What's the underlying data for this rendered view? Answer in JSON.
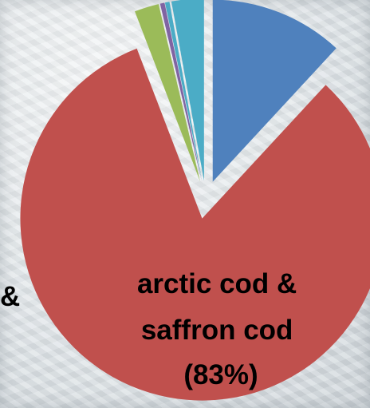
{
  "chart_data": {
    "type": "pie",
    "exploded": true,
    "slices": [
      {
        "label": "",
        "value": 12.0,
        "color": "#4f81bd"
      },
      {
        "label": "arctic cod & saffron cod (83%)",
        "value": 83.0,
        "color": "#c0504d"
      },
      {
        "label": "",
        "value": 2.2,
        "color": "#9bbb59"
      },
      {
        "label": "",
        "value": 0.4,
        "color": "#8064a2"
      },
      {
        "label": "",
        "value": 0.4,
        "color": "#4bacc6"
      },
      {
        "label": "",
        "value": 2.9,
        "color": "#4bacc6"
      }
    ],
    "label_lines": [
      "arctic cod &",
      "saffron cod",
      "(83%)"
    ],
    "partial_label": "&"
  }
}
